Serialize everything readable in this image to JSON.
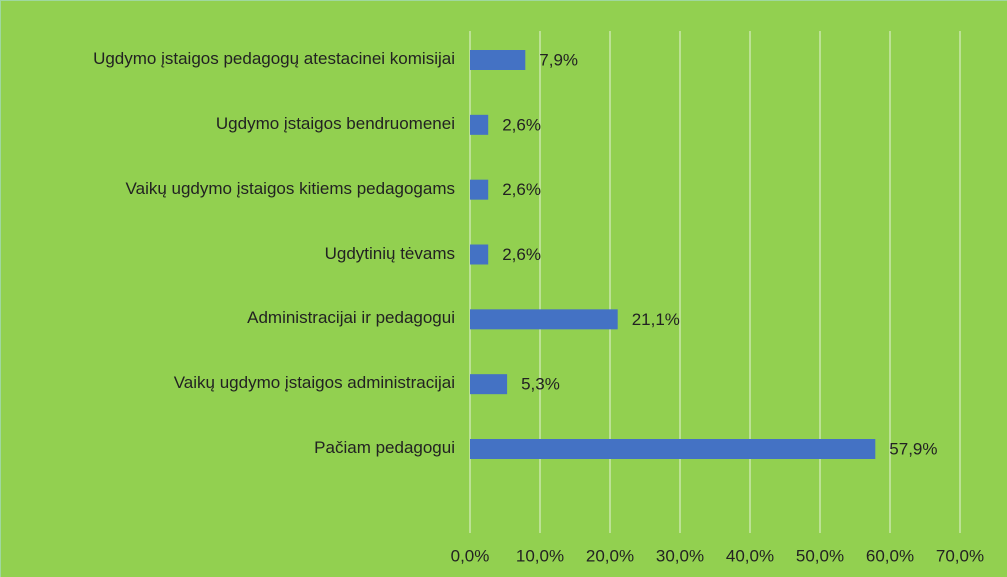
{
  "chart_data": {
    "type": "bar",
    "orientation": "horizontal",
    "categories": [
      "Ugdymo įstaigos pedagogų atestacinei komisijai",
      "Ugdymo įstaigos bendruomenei",
      "Vaikų ugdymo įstaigos kitiems pedagogams",
      "Ugdytinių tėvams",
      "Administracijai ir pedagogui",
      "Vaikų ugdymo įstaigos administracijai",
      "Pačiam pedagogui"
    ],
    "values": [
      7.9,
      2.6,
      2.6,
      2.6,
      21.1,
      5.3,
      57.9
    ],
    "value_labels": [
      "7,9%",
      "2,6%",
      "2,6%",
      "2,6%",
      "21,1%",
      "5,3%",
      "57,9%"
    ],
    "color": "#4472c4",
    "background": "#92d050",
    "xlim": [
      0,
      70
    ],
    "xticks": [
      {
        "value": 0,
        "label": "0,0%"
      },
      {
        "value": 10,
        "label": "10,0%"
      },
      {
        "value": 20,
        "label": "20,0%"
      },
      {
        "value": 30,
        "label": "30,0%"
      },
      {
        "value": 40,
        "label": "40,0%"
      },
      {
        "value": 50,
        "label": "50,0%"
      },
      {
        "value": 60,
        "label": "60,0%"
      },
      {
        "value": 70,
        "label": "70,0%"
      }
    ],
    "grid": true
  }
}
